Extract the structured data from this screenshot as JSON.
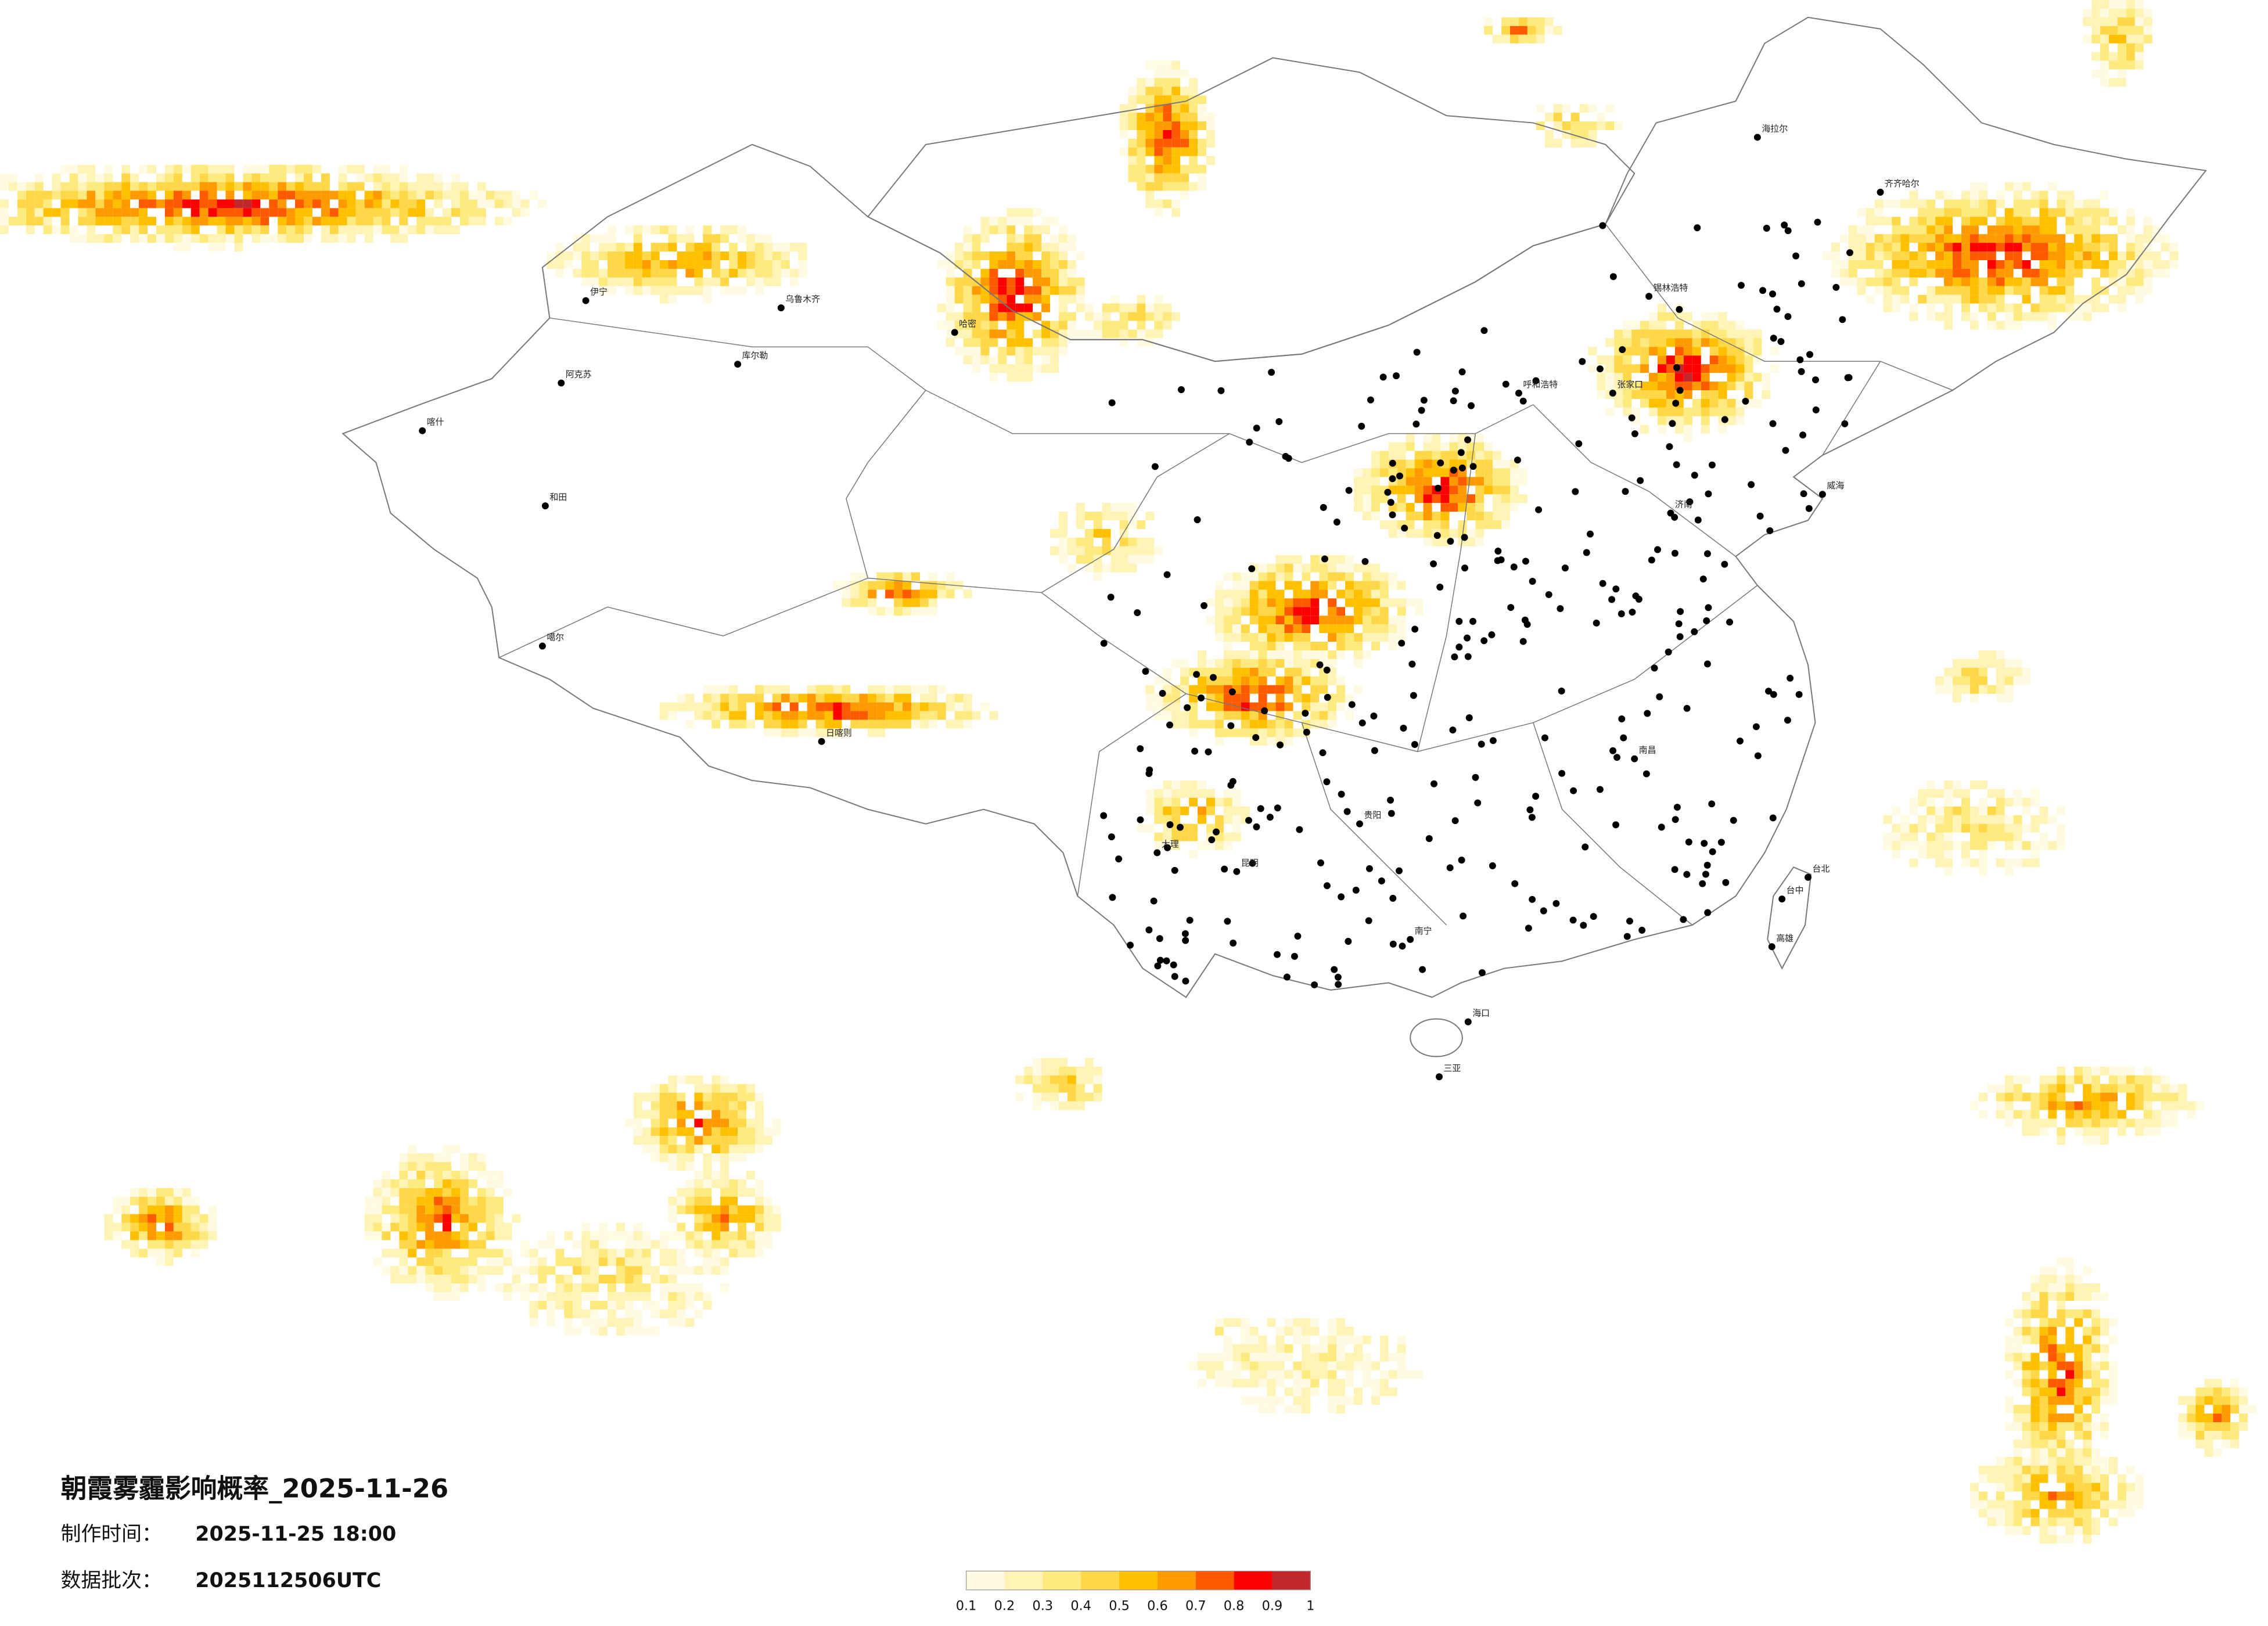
{
  "header": {
    "title": "朝霞雾霾影响概率_2025-11-26",
    "made_label": "制作时间：",
    "made_time": "2025-11-25 18:00",
    "batch_label": "数据批次：",
    "batch": "2025112506UTC"
  },
  "legend": {
    "colors": [
      "#fffbe3",
      "#fff3b5",
      "#ffea80",
      "#ffd84a",
      "#ffc000",
      "#ff9a00",
      "#ff5a00",
      "#ff0000",
      "#c1272d"
    ],
    "ticks": [
      0.1,
      0.2,
      0.3,
      0.4,
      0.5,
      0.6,
      0.7,
      0.8,
      0.9,
      1
    ]
  },
  "cities": [
    "伊宁",
    "阿克苏",
    "喀什",
    "和田",
    "库尔勒",
    "乌鲁木齐",
    "哈密",
    "噶尔",
    "日喀则",
    "呼和浩特",
    "海拉尔",
    "齐齐哈尔",
    "锡林浩特",
    "张家口",
    "济南",
    "威海",
    "南昌",
    "贵阳",
    "昆明",
    "大理",
    "南宁",
    "海口",
    "三亚",
    "台北",
    "台中",
    "高雄"
  ]
}
